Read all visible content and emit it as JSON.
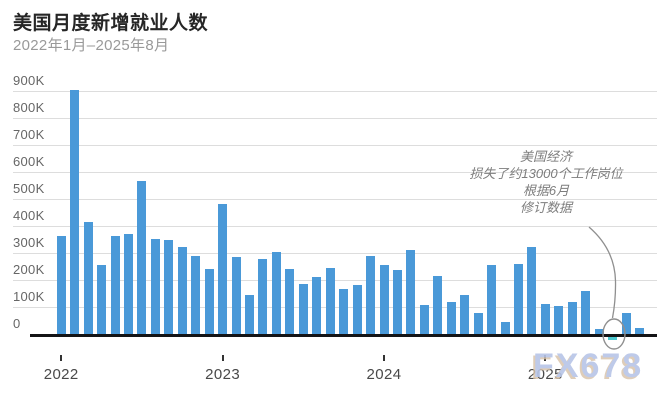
{
  "header": {
    "title": "美国月度新增就业人数",
    "subtitle": "2022年1月–2025年8月"
  },
  "annotation": {
    "lines": [
      "美国经济",
      "损失了约13000个工作岗位",
      "根据6月",
      "修订数据"
    ]
  },
  "watermark": "FX678",
  "colors": {
    "bar": "#4a99d8",
    "bar_negative": "#4cc8cf",
    "gridline": "#dddddd",
    "axis": "#141416",
    "title": "#262626",
    "subtitle": "#999999",
    "tick_label": "#666666",
    "year_label": "#494949",
    "annotation": "#7d7d7d",
    "watermark": "#b7c5e7"
  },
  "chart_data": {
    "type": "bar",
    "title": "美国月度新增就业人数",
    "subtitle": "2022年1月–2025年8月",
    "unit": "jobs, thousands (K)",
    "categories": [
      "2022-01",
      "2022-02",
      "2022-03",
      "2022-04",
      "2022-05",
      "2022-06",
      "2022-07",
      "2022-08",
      "2022-09",
      "2022-10",
      "2022-11",
      "2022-12",
      "2023-01",
      "2023-02",
      "2023-03",
      "2023-04",
      "2023-05",
      "2023-06",
      "2023-07",
      "2023-08",
      "2023-09",
      "2023-10",
      "2023-11",
      "2023-12",
      "2024-01",
      "2024-02",
      "2024-03",
      "2024-04",
      "2024-05",
      "2024-06",
      "2024-07",
      "2024-08",
      "2024-09",
      "2024-10",
      "2024-11",
      "2024-12",
      "2025-01",
      "2025-02",
      "2025-03",
      "2025-04",
      "2025-05",
      "2025-06",
      "2025-07",
      "2025-08"
    ],
    "values": [
      364,
      904,
      414,
      254,
      364,
      370,
      568,
      352,
      350,
      324,
      290,
      239,
      482,
      287,
      146,
      278,
      303,
      240,
      184,
      210,
      246,
      165,
      182,
      290,
      256,
      236,
      310,
      108,
      216,
      118,
      144,
      78,
      255,
      44,
      261,
      323,
      111,
      102,
      120,
      158,
      19,
      -13,
      79,
      22
    ],
    "xlabel": "",
    "ylabel": "",
    "ylim": [
      -50,
      950
    ],
    "grid": true,
    "legend": false,
    "y_ticks_k": [
      900,
      800,
      700,
      600,
      500,
      400,
      300,
      200,
      100,
      0
    ],
    "y_tick_labels": [
      "900K",
      "800K",
      "700K",
      "600K",
      "500K",
      "400K",
      "300K",
      "200K",
      "100K",
      "0"
    ],
    "x_tick_labels": [
      "2022",
      "2023",
      "2024",
      "2025"
    ],
    "highlight": {
      "category": "2025-06",
      "value": -13,
      "note": "美国经济损失了约13000个工作岗位 根据6月修订数据"
    }
  }
}
